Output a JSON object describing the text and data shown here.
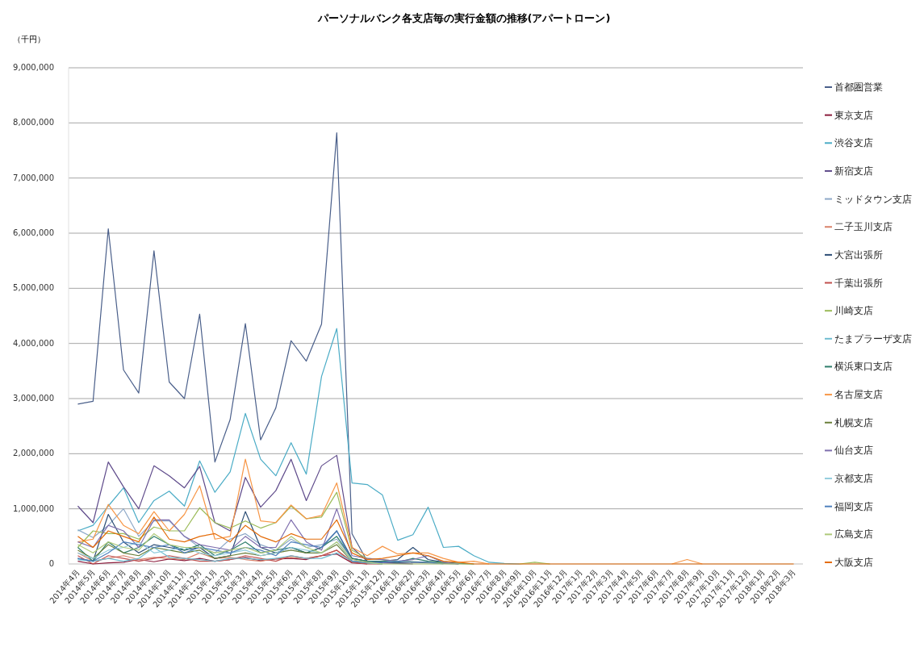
{
  "chart_data": {
    "type": "line",
    "title": "パーソナルバンク各支店毎の実行金額の推移(アパートローン)",
    "ylabel": "（千円）",
    "grid": "y",
    "legend": "right",
    "ylim": [
      0,
      9000000
    ],
    "yticks": [
      0,
      {
        "value": 1000000,
        "label": "1,000,000"
      },
      {
        "value": 2000000,
        "label": "2,000,000"
      },
      {
        "value": 3000000,
        "label": "3,000,000"
      },
      {
        "value": 4000000,
        "label": "4,000,000"
      },
      {
        "value": 5000000,
        "label": "5,000,000"
      },
      {
        "value": 6000000,
        "label": "6,000,000"
      },
      {
        "value": 7000000,
        "label": "7,000,000"
      },
      {
        "value": 8000000,
        "label": "8,000,000"
      },
      {
        "value": 9000000,
        "label": "9,000,000"
      }
    ],
    "categories": [
      "2014年4月",
      "2014年5月",
      "2014年6月",
      "2014年7月",
      "2014年8月",
      "2014年9月",
      "2014年10月",
      "2014年11月",
      "2014年12月",
      "2015年1月",
      "2015年2月",
      "2015年3月",
      "2015年4月",
      "2015年5月",
      "2015年6月",
      "2015年7月",
      "2015年8月",
      "2015年9月",
      "2015年10月",
      "2015年11月",
      "2015年12月",
      "2016年1月",
      "2016年2月",
      "2016年3月",
      "2016年4月",
      "2016年5月",
      "2016年6月",
      "2016年7月",
      "2016年8月",
      "2016年9月",
      "2016年10月",
      "2016年11月",
      "2016年12月",
      "2017年1月",
      "2017年2月",
      "2017年3月",
      "2017年4月",
      "2017年5月",
      "2017年6月",
      "2017年7月",
      "2017年8月",
      "2017年9月",
      "2017年10月",
      "2017年11月",
      "2017年12月",
      "2018年1月",
      "2018年2月",
      "2018年3月"
    ],
    "series": [
      {
        "name": "首都圏営業",
        "color": "#4a5f8a",
        "values": [
          2900000,
          2950000,
          6080000,
          3520000,
          3100000,
          5680000,
          3300000,
          3000000,
          4530000,
          1850000,
          2620000,
          4360000,
          2250000,
          2830000,
          4050000,
          3680000,
          4350000,
          7820000,
          550000,
          50000,
          30000,
          20000,
          30000,
          20000,
          10000,
          0,
          null,
          null,
          null,
          null,
          null,
          null,
          null,
          null,
          null,
          null,
          null,
          null,
          null,
          null,
          null,
          null,
          null,
          null,
          null,
          null,
          null,
          null
        ]
      },
      {
        "name": "東京支店",
        "color": "#8b1c3c",
        "values": [
          50000,
          0,
          20000,
          30000,
          80000,
          40000,
          90000,
          60000,
          100000,
          50000,
          80000,
          120000,
          60000,
          90000,
          100000,
          80000,
          150000,
          180000,
          20000,
          0,
          null,
          null,
          null,
          null,
          null,
          null,
          null,
          null,
          null,
          null,
          null,
          null,
          null,
          null,
          null,
          null,
          null,
          null,
          null,
          null,
          null,
          null,
          null,
          null,
          null,
          null,
          null,
          null
        ]
      },
      {
        "name": "渋谷支店",
        "color": "#4bacc6",
        "values": [
          600000,
          700000,
          1050000,
          1380000,
          750000,
          1150000,
          1320000,
          1050000,
          1870000,
          1300000,
          1670000,
          2730000,
          1900000,
          1600000,
          2200000,
          1630000,
          3400000,
          4270000,
          1470000,
          1440000,
          1250000,
          430000,
          530000,
          1030000,
          300000,
          320000,
          150000,
          30000,
          10000,
          0,
          null,
          null,
          null,
          null,
          null,
          null,
          null,
          null,
          null,
          null,
          null,
          null,
          null,
          null,
          null,
          null,
          null,
          null
        ]
      },
      {
        "name": "新宿支店",
        "color": "#5f4b8b",
        "values": [
          1050000,
          750000,
          1850000,
          1400000,
          1000000,
          1780000,
          1600000,
          1380000,
          1770000,
          750000,
          600000,
          1570000,
          1030000,
          1330000,
          1900000,
          1150000,
          1780000,
          1970000,
          300000,
          50000,
          20000,
          10000,
          0,
          null,
          null,
          null,
          null,
          null,
          null,
          null,
          null,
          null,
          null,
          null,
          null,
          null,
          null,
          null,
          null,
          null,
          null,
          null,
          null,
          null,
          null,
          null,
          null,
          null
        ]
      },
      {
        "name": "ミッドタウン支店",
        "color": "#8ea9c8",
        "values": [
          620000,
          480000,
          700000,
          1000000,
          500000,
          780000,
          780000,
          500000,
          300000,
          200000,
          450000,
          550000,
          350000,
          250000,
          450000,
          300000,
          350000,
          450000,
          100000,
          50000,
          0,
          null,
          null,
          null,
          null,
          null,
          null,
          null,
          null,
          null,
          null,
          null,
          null,
          null,
          null,
          null,
          null,
          null,
          null,
          null,
          null,
          null,
          null,
          null,
          null,
          null,
          null,
          null
        ]
      },
      {
        "name": "二子玉川支店",
        "color": "#d9826a",
        "values": [
          200000,
          50000,
          100000,
          150000,
          80000,
          120000,
          100000,
          80000,
          200000,
          100000,
          120000,
          80000,
          50000,
          100000,
          120000,
          100000,
          150000,
          250000,
          50000,
          0,
          null,
          null,
          null,
          null,
          null,
          null,
          null,
          null,
          null,
          null,
          null,
          null,
          null,
          null,
          null,
          null,
          null,
          null,
          null,
          null,
          null,
          null,
          null,
          null,
          null,
          null,
          null,
          null
        ]
      },
      {
        "name": "大宮出張所",
        "color": "#2c4d75",
        "values": [
          100000,
          50000,
          900000,
          400000,
          200000,
          350000,
          300000,
          250000,
          300000,
          100000,
          150000,
          950000,
          300000,
          200000,
          300000,
          200000,
          300000,
          600000,
          100000,
          50000,
          50000,
          80000,
          300000,
          80000,
          30000,
          0,
          null,
          null,
          null,
          null,
          null,
          null,
          null,
          null,
          null,
          null,
          null,
          null,
          null,
          null,
          null,
          null,
          null,
          null,
          null,
          null,
          null,
          null
        ]
      },
      {
        "name": "千葉出張所",
        "color": "#c0504d",
        "values": [
          150000,
          0,
          150000,
          100000,
          50000,
          100000,
          150000,
          100000,
          50000,
          50000,
          80000,
          150000,
          100000,
          50000,
          150000,
          100000,
          150000,
          250000,
          30000,
          0,
          0,
          null,
          null,
          null,
          null,
          null,
          null,
          null,
          null,
          null,
          null,
          null,
          null,
          null,
          null,
          null,
          null,
          null,
          null,
          null,
          null,
          null,
          null,
          null,
          null,
          null,
          null,
          null
        ]
      },
      {
        "name": "川崎支店",
        "color": "#9bbb59",
        "values": [
          300000,
          600000,
          550000,
          550000,
          450000,
          670000,
          600000,
          600000,
          1020000,
          750000,
          650000,
          780000,
          650000,
          750000,
          1050000,
          820000,
          850000,
          1300000,
          250000,
          100000,
          80000,
          50000,
          40000,
          30000,
          20000,
          10000,
          0,
          null,
          null,
          0,
          30000,
          0,
          null,
          null,
          null,
          null,
          null,
          null,
          null,
          null,
          null,
          null,
          null,
          null,
          null,
          null,
          null,
          null
        ]
      },
      {
        "name": "たまプラーザ支店",
        "color": "#6fbdd1",
        "values": [
          80000,
          50000,
          100000,
          50000,
          100000,
          300000,
          120000,
          100000,
          80000,
          50000,
          100000,
          100000,
          80000,
          100000,
          150000,
          100000,
          100000,
          200000,
          50000,
          30000,
          0,
          null,
          null,
          null,
          null,
          null,
          null,
          null,
          null,
          null,
          null,
          null,
          null,
          null,
          null,
          null,
          null,
          null,
          null,
          null,
          null,
          null,
          null,
          null,
          null,
          null,
          null,
          null
        ]
      },
      {
        "name": "横浜東口支店",
        "color": "#2e7d6b",
        "values": [
          300000,
          50000,
          400000,
          200000,
          300000,
          500000,
          350000,
          250000,
          350000,
          150000,
          250000,
          400000,
          200000,
          250000,
          300000,
          200000,
          300000,
          500000,
          100000,
          50000,
          50000,
          30000,
          100000,
          50000,
          30000,
          10000,
          0,
          null,
          null,
          null,
          null,
          null,
          null,
          null,
          null,
          null,
          null,
          null,
          null,
          null,
          null,
          null,
          null,
          null,
          null,
          null,
          null,
          null
        ]
      },
      {
        "name": "名古屋支店",
        "color": "#f79646",
        "values": [
          400000,
          450000,
          1080000,
          700000,
          550000,
          950000,
          600000,
          900000,
          1420000,
          450000,
          500000,
          1900000,
          780000,
          750000,
          1070000,
          820000,
          880000,
          1470000,
          300000,
          150000,
          320000,
          180000,
          200000,
          200000,
          100000,
          30000,
          50000,
          0,
          null,
          null,
          null,
          null,
          null,
          null,
          null,
          null,
          null,
          null,
          null,
          0,
          80000,
          0,
          null,
          null,
          null,
          null,
          null,
          null
        ]
      },
      {
        "name": "札幌支店",
        "color": "#6a7f3a",
        "values": [
          250000,
          100000,
          350000,
          200000,
          150000,
          300000,
          250000,
          200000,
          250000,
          100000,
          150000,
          200000,
          150000,
          200000,
          250000,
          200000,
          200000,
          350000,
          50000,
          20000,
          0,
          null,
          null,
          null,
          null,
          null,
          null,
          null,
          null,
          null,
          null,
          null,
          null,
          null,
          null,
          null,
          null,
          null,
          null,
          null,
          null,
          null,
          null,
          null,
          null,
          null,
          null,
          null
        ]
      },
      {
        "name": "仙台支店",
        "color": "#7f6fae",
        "values": [
          400000,
          300000,
          700000,
          600000,
          300000,
          800000,
          800000,
          500000,
          350000,
          300000,
          250000,
          500000,
          300000,
          300000,
          800000,
          400000,
          250000,
          1000000,
          150000,
          100000,
          80000,
          50000,
          80000,
          150000,
          30000,
          0,
          null,
          null,
          null,
          null,
          null,
          null,
          null,
          null,
          null,
          null,
          null,
          null,
          null,
          null,
          null,
          null,
          null,
          null,
          null,
          null,
          null,
          null
        ]
      },
      {
        "name": "京都支店",
        "color": "#93cddd",
        "values": [
          200000,
          100000,
          250000,
          300000,
          400000,
          200000,
          250000,
          300000,
          200000,
          150000,
          200000,
          250000,
          150000,
          200000,
          300000,
          250000,
          200000,
          400000,
          50000,
          20000,
          0,
          null,
          null,
          null,
          null,
          null,
          null,
          null,
          null,
          null,
          null,
          null,
          null,
          null,
          null,
          null,
          null,
          null,
          null,
          null,
          null,
          null,
          null,
          null,
          null,
          null,
          null,
          null
        ]
      },
      {
        "name": "福岡支店",
        "color": "#4f81bd",
        "values": [
          100000,
          50000,
          200000,
          400000,
          350000,
          300000,
          350000,
          200000,
          300000,
          250000,
          200000,
          300000,
          250000,
          150000,
          400000,
          350000,
          300000,
          600000,
          50000,
          20000,
          30000,
          50000,
          40000,
          30000,
          0,
          null,
          null,
          null,
          null,
          null,
          null,
          null,
          null,
          null,
          null,
          null,
          null,
          null,
          null,
          null,
          null,
          null,
          null,
          null,
          null,
          null,
          null,
          null
        ]
      },
      {
        "name": "広島支店",
        "color": "#afc97a",
        "values": [
          350000,
          200000,
          400000,
          300000,
          250000,
          550000,
          350000,
          300000,
          300000,
          200000,
          250000,
          300000,
          200000,
          250000,
          500000,
          300000,
          200000,
          400000,
          80000,
          30000,
          0,
          0,
          0,
          0,
          0,
          0,
          0,
          null,
          null,
          null,
          null,
          null,
          null,
          null,
          null,
          null,
          null,
          null,
          null,
          null,
          null,
          null,
          null,
          null,
          null,
          null,
          null,
          null
        ]
      },
      {
        "name": "大阪支店",
        "color": "#e46c0a",
        "values": [
          500000,
          300000,
          600000,
          500000,
          400000,
          850000,
          450000,
          400000,
          500000,
          550000,
          400000,
          700000,
          500000,
          400000,
          550000,
          450000,
          450000,
          800000,
          200000,
          80000,
          100000,
          150000,
          200000,
          150000,
          50000,
          30000,
          0,
          0,
          0,
          0,
          0,
          0,
          0,
          0,
          0,
          0,
          0,
          0,
          0,
          0,
          0,
          0,
          0,
          0,
          0,
          0,
          0,
          0
        ]
      }
    ]
  }
}
